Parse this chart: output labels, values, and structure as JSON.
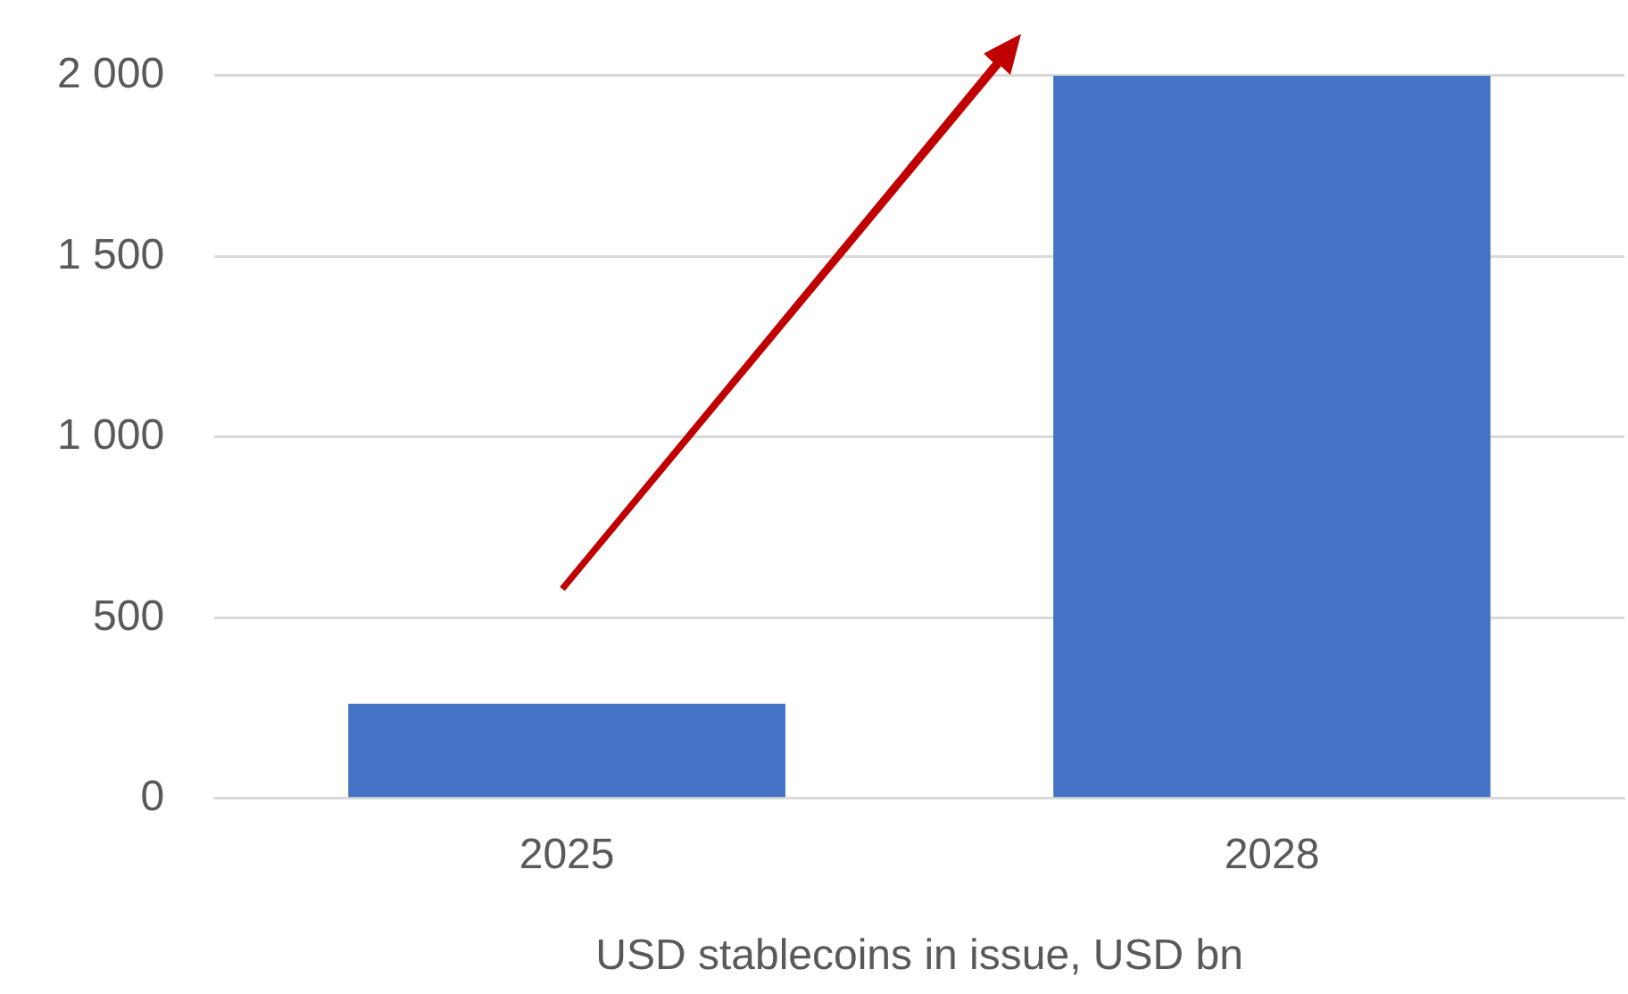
{
  "chart_data": {
    "type": "bar",
    "categories": [
      "2025",
      "2028"
    ],
    "values": [
      262,
      2000
    ],
    "color": "#4472c4",
    "xlabel": "USD stablecoins in issue, USD bn",
    "ylim": [
      0,
      2000
    ],
    "yticks": [
      {
        "value": 0,
        "label": "0"
      },
      {
        "value": 500,
        "label": "500"
      },
      {
        "value": 1000,
        "label": "1 000"
      },
      {
        "value": 1500,
        "label": "1 500"
      },
      {
        "value": 2000,
        "label": "2 000"
      }
    ],
    "grid": "y",
    "legend": false
  }
}
